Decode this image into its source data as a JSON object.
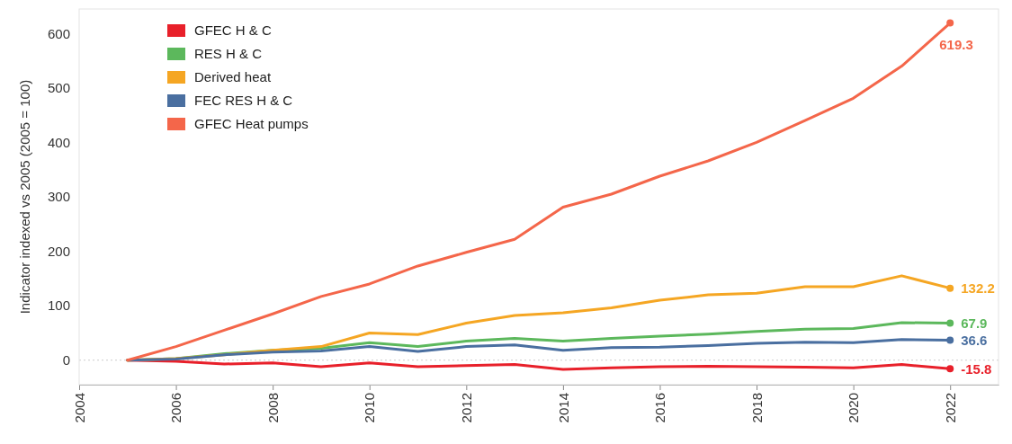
{
  "chart_data": {
    "type": "line",
    "ylabel": "Indicator indexed vs 2005 (2005 = 100)",
    "x": [
      2005,
      2006,
      2007,
      2008,
      2009,
      2010,
      2011,
      2012,
      2013,
      2014,
      2015,
      2016,
      2017,
      2018,
      2019,
      2020,
      2021,
      2022
    ],
    "xlim": [
      2004,
      2023
    ],
    "xticks": [
      2004,
      2006,
      2008,
      2010,
      2012,
      2014,
      2016,
      2018,
      2020,
      2022
    ],
    "ylim": [
      -45,
      645
    ],
    "yticks": [
      0,
      100,
      200,
      300,
      400,
      500,
      600
    ],
    "legend": "top left",
    "grid": false,
    "line_style": "solid",
    "ref_lines": [
      {
        "axis": "y",
        "value": 0,
        "color": "#cccccc",
        "line_style": "dotted"
      }
    ],
    "series": [
      {
        "name": "GFEC H & C",
        "color": "#e8202a",
        "values": [
          0,
          -2,
          -7,
          -5,
          -12,
          -5,
          -12,
          -10,
          -8,
          -17,
          -14,
          -12,
          -11,
          -12,
          -13,
          -14,
          -8,
          -15.8
        ],
        "value_labels": [
          null,
          null,
          null,
          null,
          null,
          null,
          null,
          null,
          null,
          null,
          null,
          null,
          null,
          null,
          null,
          null,
          null,
          "-15.8"
        ]
      },
      {
        "name": "RES H & C",
        "color": "#5cb85c",
        "values": [
          0,
          3,
          12,
          18,
          22,
          32,
          25,
          35,
          40,
          35,
          40,
          44,
          48,
          53,
          57,
          58,
          69,
          67.9
        ],
        "value_labels": [
          null,
          null,
          null,
          null,
          null,
          null,
          null,
          null,
          null,
          null,
          null,
          null,
          null,
          null,
          null,
          null,
          null,
          "67.9"
        ]
      },
      {
        "name": "Derived heat",
        "color": "#f5a623",
        "values": [
          0,
          3,
          10,
          18,
          25,
          50,
          47,
          68,
          82,
          87,
          96,
          110,
          120,
          123,
          135,
          135,
          155,
          132.2
        ],
        "value_labels": [
          null,
          null,
          null,
          null,
          null,
          null,
          null,
          null,
          null,
          null,
          null,
          null,
          null,
          null,
          null,
          null,
          null,
          "132.2"
        ]
      },
      {
        "name": "FEC RES H & C",
        "color": "#4a6fa0",
        "values": [
          0,
          2,
          10,
          15,
          17,
          25,
          16,
          25,
          28,
          18,
          23,
          24,
          27,
          31,
          33,
          32,
          38,
          36.6
        ],
        "value_labels": [
          null,
          null,
          null,
          null,
          null,
          null,
          null,
          null,
          null,
          null,
          null,
          null,
          null,
          null,
          null,
          null,
          null,
          "36.6"
        ]
      },
      {
        "name": "GFEC Heat pumps",
        "color": "#f4664a",
        "values": [
          0,
          25,
          55,
          85,
          117,
          140,
          173,
          198,
          222,
          281,
          305,
          338,
          366,
          400,
          440,
          481,
          540,
          619.3
        ],
        "value_labels": [
          null,
          null,
          null,
          null,
          null,
          null,
          null,
          null,
          null,
          null,
          null,
          null,
          null,
          null,
          null,
          null,
          null,
          "619.3"
        ]
      }
    ]
  }
}
